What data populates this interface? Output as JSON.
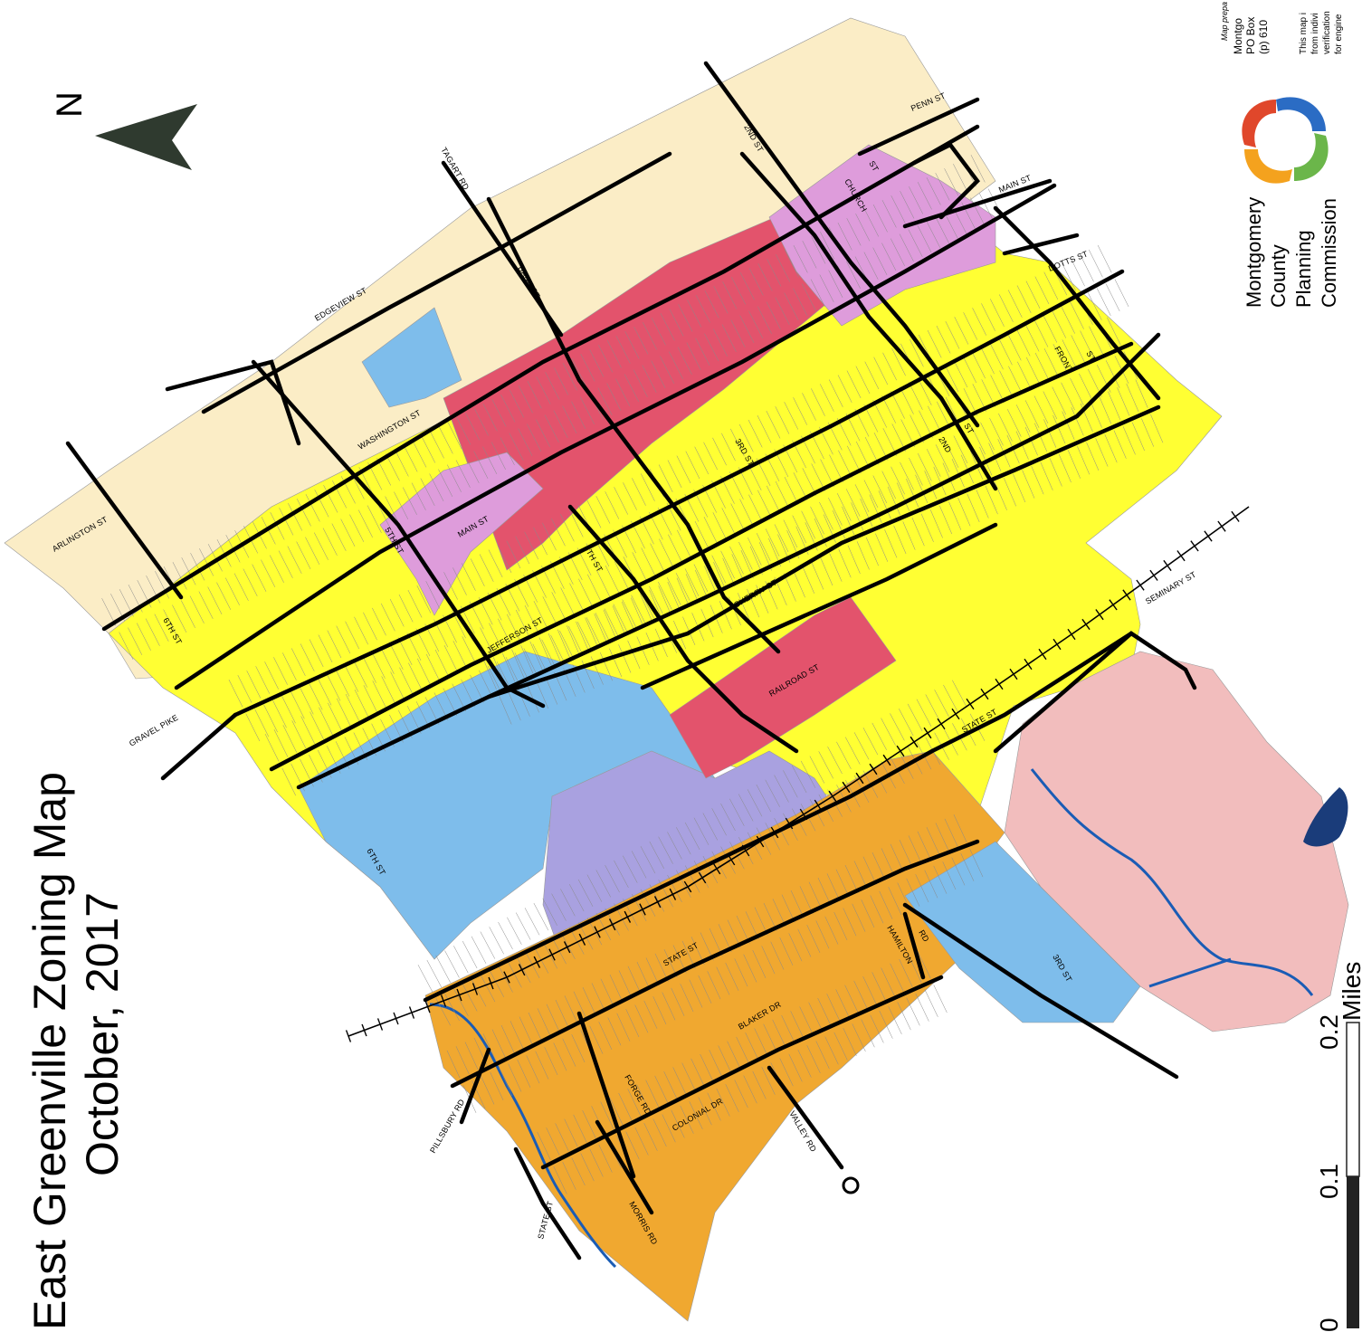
{
  "title": {
    "line1": "East Greenville Zoning Map",
    "line2": "October, 2017"
  },
  "north_arrow": {
    "label": "N",
    "icon": "north-arrow-icon"
  },
  "scale_bar": {
    "tick_0": "0",
    "tick_1": "0.1",
    "tick_2": "0.2",
    "units": "Miles"
  },
  "organization": {
    "line1": "Montgomery",
    "line2": "County",
    "line3": "Planning",
    "line4": "Commission",
    "logo": "mcpc-logo-icon"
  },
  "prepared_note": {
    "line1": "Map prepa",
    "line2": "Montgo",
    "line3": "PO Box",
    "line4": "(p) 610",
    "line5": "This map i",
    "line6": "from indivi",
    "line7": "verification",
    "line8": "for engine"
  },
  "zone_colors": {
    "residential_low": "#FBEDC6",
    "residential_mid": "#FFFF33",
    "commercial": "#E3536C",
    "commercial_mixed": "#DE9CDB",
    "institutional": "#7EBDEB",
    "industrial": "#A9A1E0",
    "planned": "#F0A830",
    "open_space": "#F2BDBD",
    "water": "#1A5CB5",
    "road": "#000000"
  },
  "streets": {
    "penn": "PENN ST",
    "church": "CHURCH",
    "st_small": "ST",
    "second_top": "2ND ST",
    "main_top": "MAIN ST",
    "dotts": "DOTTS ST",
    "front": "FRONT",
    "front_st": "ST",
    "tagart": "TAGART RD",
    "bank": "BANK ST",
    "edgeview": "EDGEVIEW ST",
    "washington": "WASHINGTON ST",
    "arlington": "ARLINGTON ST",
    "main": "MAIN ST",
    "fifth": "5TH ST",
    "sixth_top": "6TH ST",
    "fourth": "4TH ST",
    "third": "3RD ST",
    "second": "2ND",
    "second_st": "ST",
    "jefferson": "JEFFERSON ST",
    "cherry": "CHERRY ST",
    "railroad": "RAILROAD ST",
    "seminary": "SEMINARY ST",
    "state_right": "STATE ST",
    "gravel_pike": "GRAVEL PIKE",
    "sixth_bottom": "6TH ST",
    "state_mid": "STATE ST",
    "third_bottom": "3RD ST",
    "hamilton": "HAMILTON",
    "hamilton_rd": "RD",
    "blaker": "BLAKER DR",
    "forge": "FORGE RD",
    "colonial": "COLONIAL DR",
    "valley": "VALLEY RD",
    "morris": "MORRIS RD",
    "pillsbury": "PILLSBURY RD",
    "state_bottom": "STATE ST"
  }
}
